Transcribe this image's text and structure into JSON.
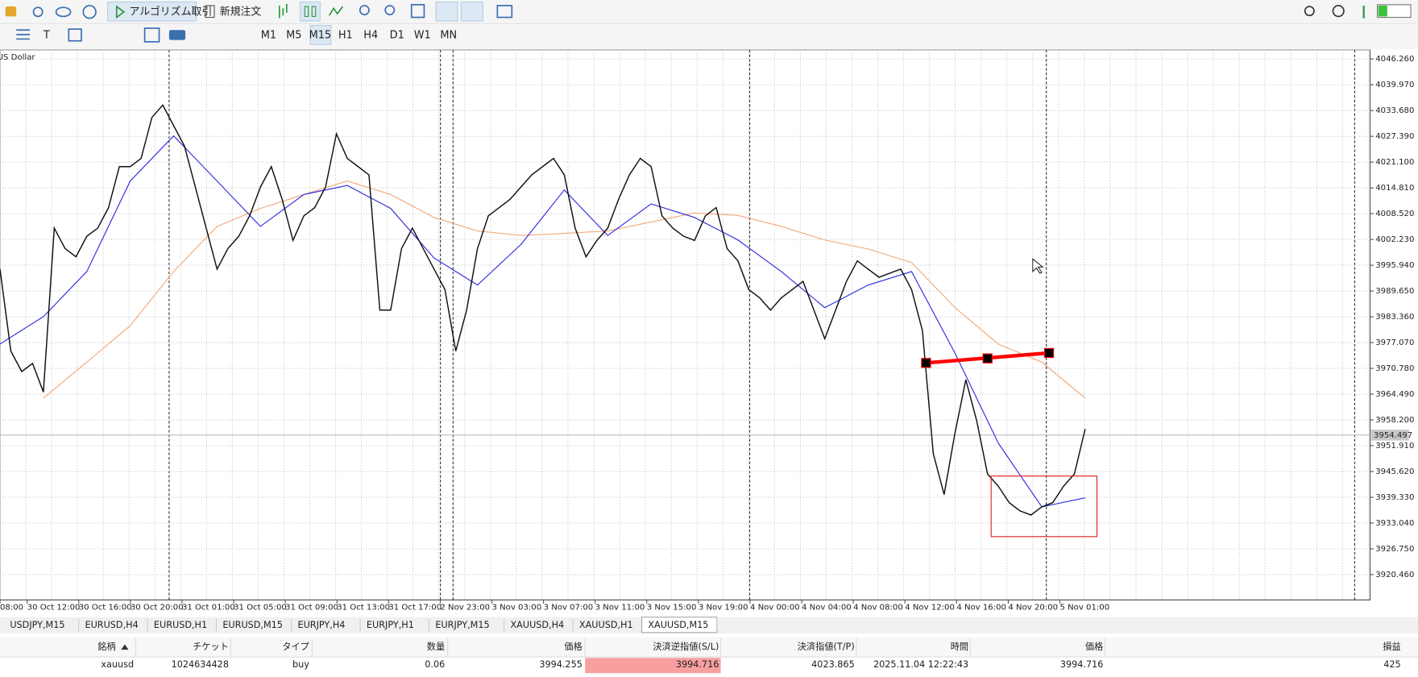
{
  "toolbar": {
    "algo_button": "アルゴリズム取引",
    "new_order_button": "新規注文",
    "timeframes": [
      "M1",
      "M5",
      "M15",
      "H1",
      "H4",
      "D1",
      "W1",
      "MN"
    ],
    "active_timeframe": 2
  },
  "chart_data": {
    "type": "line",
    "label": "US Dollar",
    "ylim": [
      3914.28,
      4048.47
    ],
    "yticks": [
      {
        "value": 4046.26,
        "label": "4046.260"
      },
      {
        "value": 4039.97,
        "label": "4039.970"
      },
      {
        "value": 4033.68,
        "label": "4033.680"
      },
      {
        "value": 4027.39,
        "label": "4027.390"
      },
      {
        "value": 4021.1,
        "label": "4021.100"
      },
      {
        "value": 4014.81,
        "label": "4014.810"
      },
      {
        "value": 4008.52,
        "label": "4008.520"
      },
      {
        "value": 4002.23,
        "label": "4002.230"
      },
      {
        "value": 3995.94,
        "label": "3995.940"
      },
      {
        "value": 3989.65,
        "label": "3989.650"
      },
      {
        "value": 3983.36,
        "label": "3983.360"
      },
      {
        "value": 3977.07,
        "label": "3977.070"
      },
      {
        "value": 3970.78,
        "label": "3970.780"
      },
      {
        "value": 3964.49,
        "label": "3964.490"
      },
      {
        "value": 3958.2,
        "label": "3958.200"
      },
      {
        "value": 3951.91,
        "label": "3951.910"
      },
      {
        "value": 3945.62,
        "label": "3945.620"
      },
      {
        "value": 3939.33,
        "label": "3939.330"
      },
      {
        "value": 3933.04,
        "label": "3933.040"
      },
      {
        "value": 3926.75,
        "label": "3926.750"
      },
      {
        "value": 3920.46,
        "label": "3920.460"
      }
    ],
    "current_price": {
      "value": 3954.497,
      "label": "3954.497"
    },
    "x_labels": [
      "08:00",
      "30 Oct 12:00",
      "30 Oct 16:00",
      "30 Oct 20:00",
      "31 Oct 01:00",
      "31 Oct 05:00",
      "31 Oct 09:00",
      "31 Oct 13:00",
      "31 Oct 17:00",
      "2 Nov 23:00",
      "3 Nov 03:00",
      "3 Nov 07:00",
      "3 Nov 11:00",
      "3 Nov 15:00",
      "3 Nov 19:00",
      "4 Nov 00:00",
      "4 Nov 04:00",
      "4 Nov 08:00",
      "4 Nov 12:00",
      "4 Nov 16:00",
      "4 Nov 20:00",
      "5 Nov 01:00"
    ],
    "series": [
      {
        "color": "#111111",
        "values": [
          3995,
          3975,
          3970,
          3972,
          3965,
          4005,
          4000,
          3998,
          4003,
          4005,
          4010,
          4020,
          4020,
          4022,
          4032,
          4035,
          4030,
          4025,
          4015,
          4005,
          3995,
          4000,
          4003,
          4008,
          4015,
          4020,
          4012,
          4002,
          4008,
          4010,
          4015,
          4028,
          4022,
          4020,
          4018,
          3985,
          3985,
          4000,
          4005,
          4000,
          3995,
          3990,
          3975,
          3985,
          4000,
          4008,
          4010,
          4012,
          4015,
          4018,
          4020,
          4022,
          4018,
          4005,
          3998,
          4002,
          4005,
          4012,
          4018,
          4022,
          4020,
          4008,
          4005,
          4003,
          4002,
          4008,
          4010,
          4000,
          3997,
          3990,
          3988,
          3985,
          3988,
          3990,
          3992,
          3985,
          3978,
          3985,
          3992,
          3997,
          3995,
          3993,
          3994,
          3995,
          3990,
          3980,
          3950,
          3940,
          3955,
          3968,
          3958,
          3945,
          3942,
          3938,
          3936,
          3935,
          3937,
          3938,
          3942,
          3945,
          3956
        ]
      },
      {
        "color": "#2a2ae0",
        "values": [
          3976.7,
          3983.4,
          3994.4,
          4016.5,
          4027.5,
          4016.5,
          4005.4,
          4013.2,
          4015.4,
          4009.8,
          3997.7,
          3991.1,
          4001.0,
          4014.3,
          4003.2,
          4010.9,
          4007.6,
          4002.1,
          3994.4,
          3985.6,
          3991.1,
          3994.4,
          3974.5,
          3952.5,
          3937.0,
          3939.2
        ]
      },
      {
        "color": "#f0a878",
        "values": [
          null,
          3963.5,
          3972.3,
          3981.2,
          3994.4,
          4005.4,
          4009.8,
          4013.2,
          4016.5,
          4013.2,
          4007.6,
          4004.3,
          4003.2,
          4003.7,
          4004.3,
          4006.5,
          4008.7,
          4008.1,
          4005.4,
          4002.1,
          3999.9,
          3996.6,
          3985.6,
          3976.7,
          3972.3,
          3963.5
        ]
      }
    ]
  },
  "tabs": [
    "USDJPY,M15",
    "EURUSD,H4",
    "EURUSD,H1",
    "EURUSD,M15",
    "EURJPY,H4",
    "EURJPY,H1",
    "EURJPY,M15",
    "XAUUSD,H4",
    "XAUUSD,H1",
    "XAUUSD,M15"
  ],
  "active_tab": 9,
  "table": {
    "headers": [
      "銘柄",
      "チケット",
      "タイプ",
      "数量",
      "価格",
      "決済逆指値(S/L)",
      "決済指値(T/P)",
      "時間",
      "価格",
      "損益"
    ],
    "rows": [
      [
        "xauusd",
        "1024634428",
        "buy",
        "0.06",
        "3994.255",
        "3994.716",
        "4023.865",
        "2025.11.04 12:22:43",
        "3994.716",
        "425"
      ]
    ]
  }
}
